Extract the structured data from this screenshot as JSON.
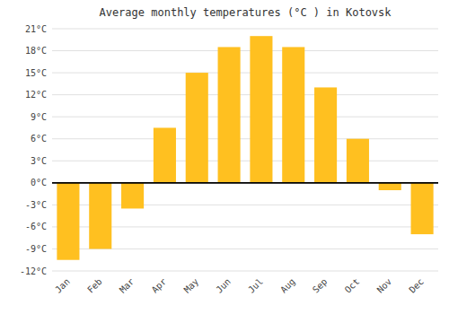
{
  "chart_data": {
    "type": "bar",
    "title": "Average monthly temperatures (°C ) in Kotovsk",
    "categories": [
      "Jan",
      "Feb",
      "Mar",
      "Apr",
      "May",
      "Jun",
      "Jul",
      "Aug",
      "Sep",
      "Oct",
      "Nov",
      "Dec"
    ],
    "values": [
      -10.5,
      -9.0,
      -3.5,
      7.5,
      15.0,
      18.5,
      20.0,
      18.5,
      13.0,
      6.0,
      -1.0,
      -7.0
    ],
    "color": "#FFC020",
    "ylim": [
      -12,
      21
    ],
    "yticks": [
      {
        "value": -12,
        "label": "-12°C"
      },
      {
        "value": -9,
        "label": "-9°C"
      },
      {
        "value": -6,
        "label": "-6°C"
      },
      {
        "value": -3,
        "label": "-3°C"
      },
      {
        "value": 0,
        "label": "0°C"
      },
      {
        "value": 3,
        "label": "3°C"
      },
      {
        "value": 6,
        "label": "6°C"
      },
      {
        "value": 9,
        "label": "9°C"
      },
      {
        "value": 12,
        "label": "12°C"
      },
      {
        "value": 15,
        "label": "15°C"
      },
      {
        "value": 18,
        "label": "18°C"
      },
      {
        "value": 21,
        "label": "21°C"
      }
    ],
    "grid": true
  }
}
